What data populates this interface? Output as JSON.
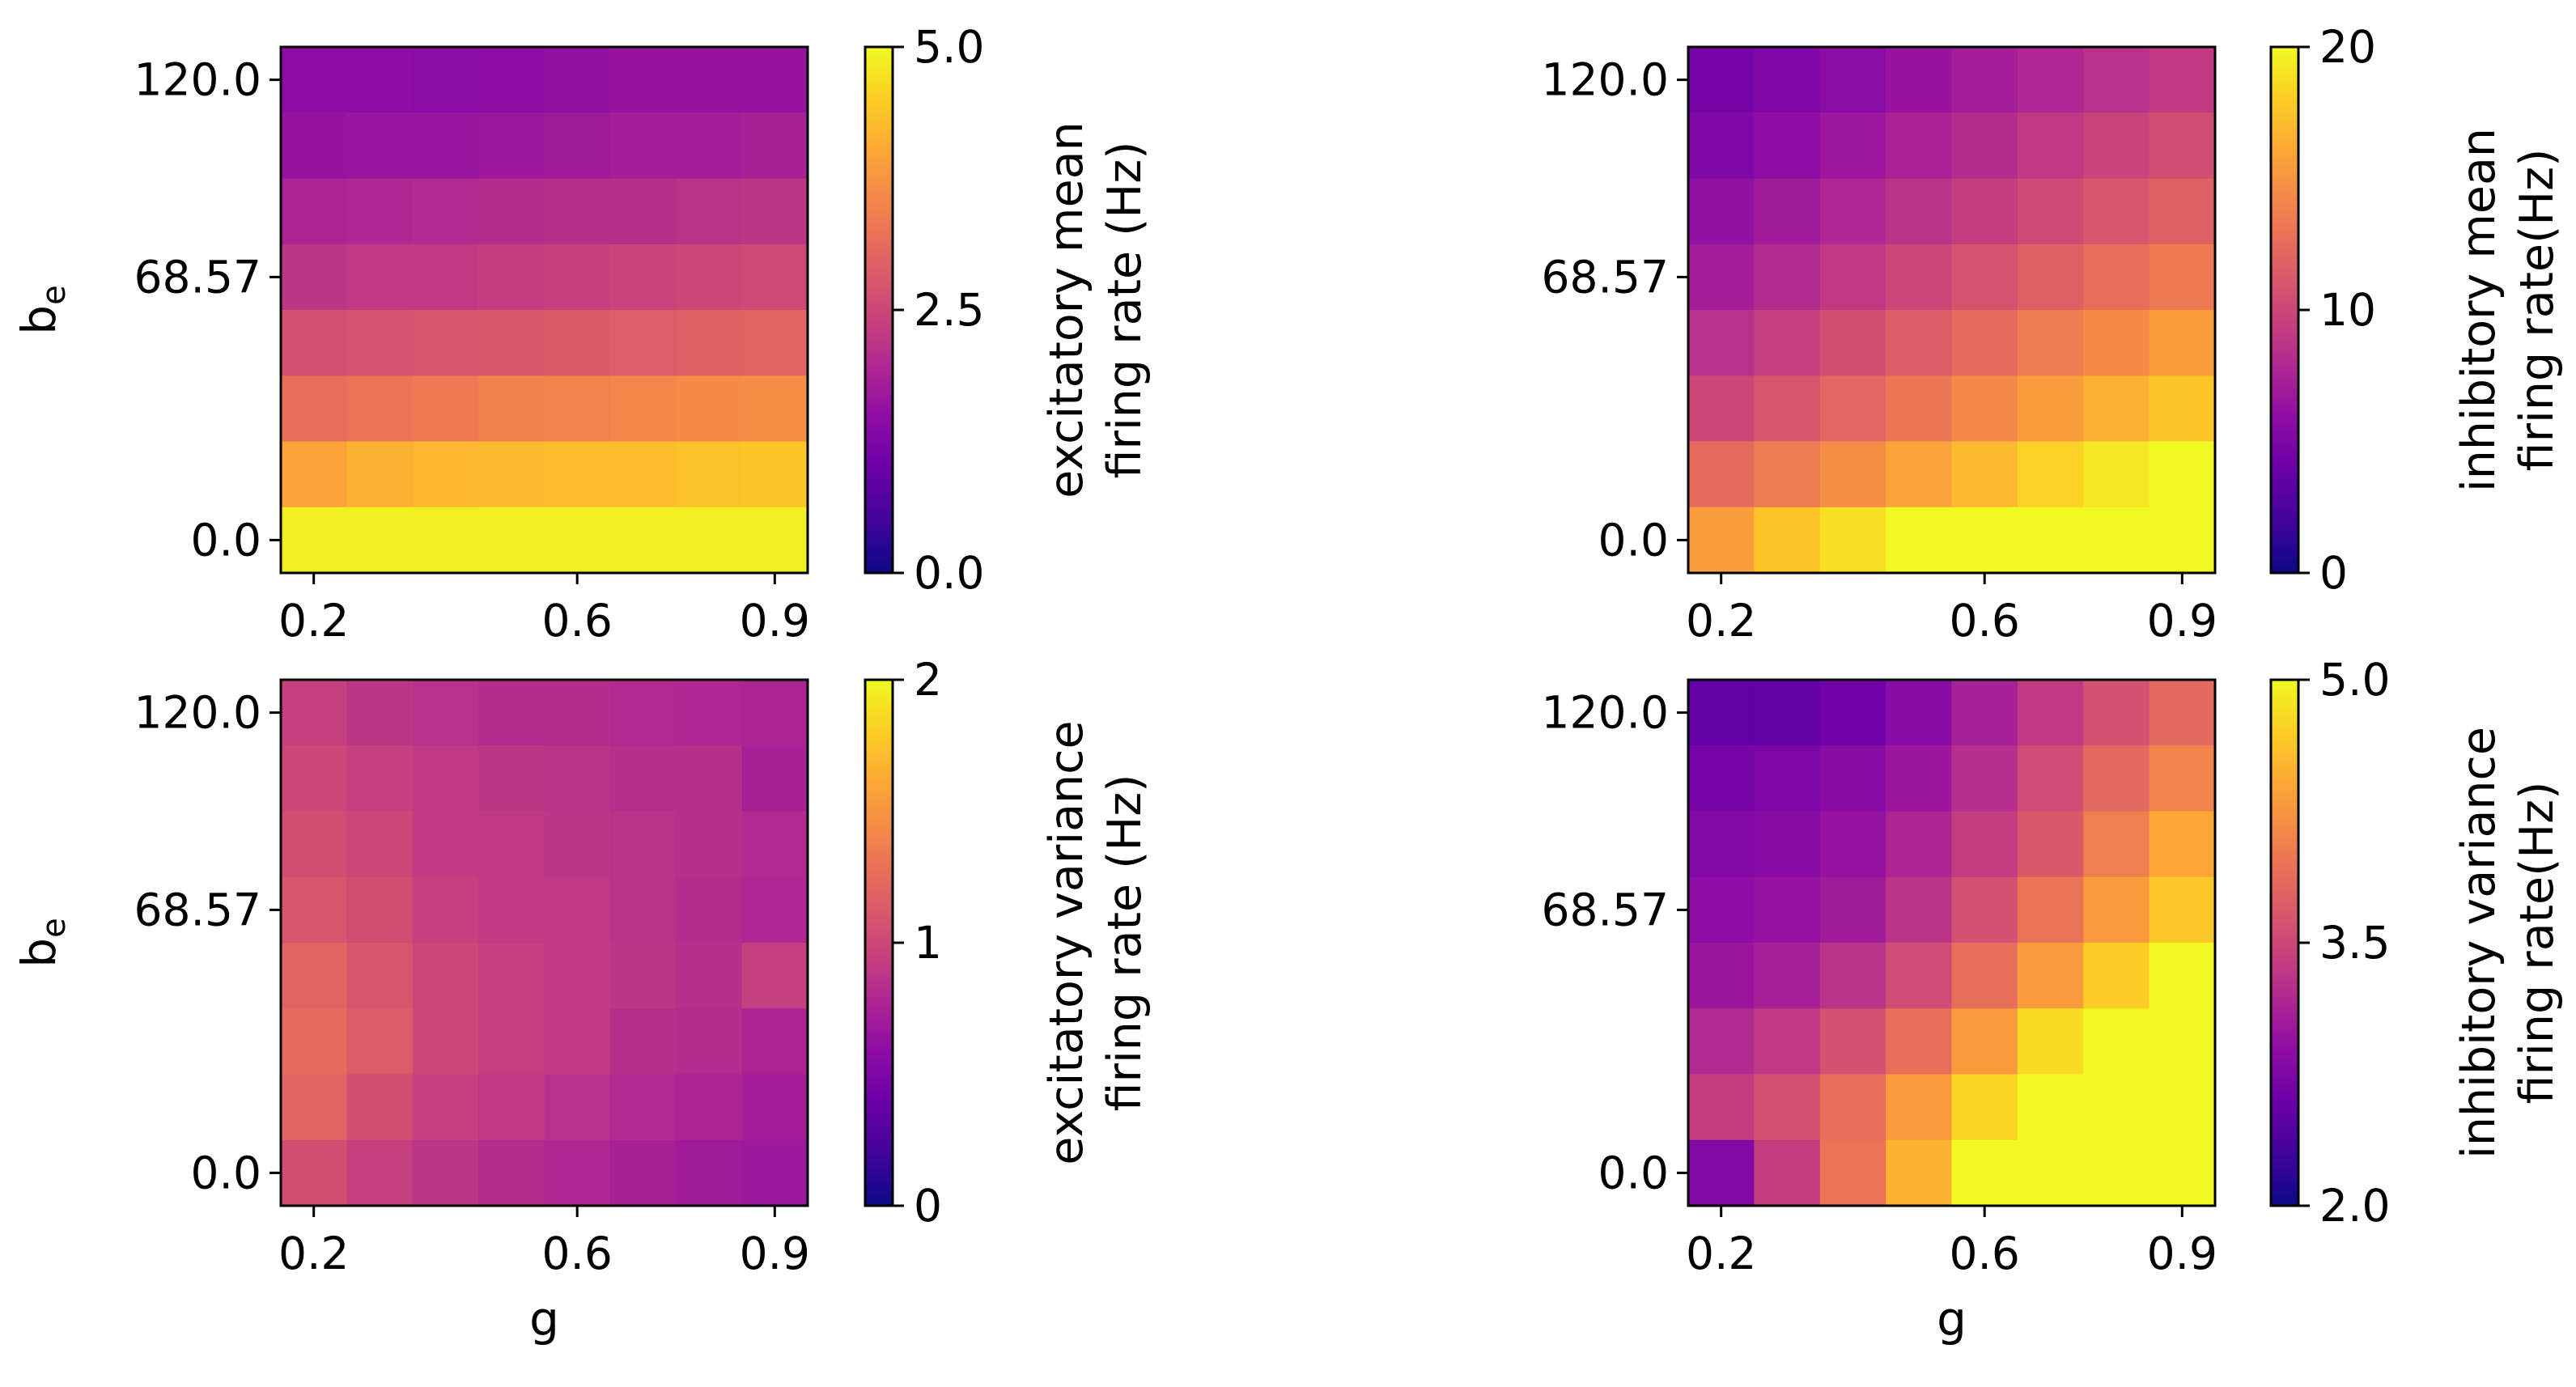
{
  "chart_data": [
    {
      "type": "heatmap",
      "id": "excitatory-mean",
      "title": "",
      "xlabel": "",
      "ylabel": "b_e",
      "ylabel_main": "b",
      "ylabel_sub": "e",
      "xticks": [
        {
          "value": 0.2,
          "col": 0
        },
        {
          "value": 0.6,
          "col": 4
        },
        {
          "value": 0.9,
          "col": 7
        }
      ],
      "yticks": [
        {
          "value": 120.0,
          "label": "120.0",
          "row": 0
        },
        {
          "value": 68.57,
          "label": "68.57",
          "row": 3
        },
        {
          "value": 0.0,
          "label": "0.0",
          "row": 7
        }
      ],
      "colorbar": {
        "label_lines": [
          "excitatory mean",
          "firing rate (Hz)"
        ],
        "range": [
          0,
          5
        ],
        "ticks": [
          "0.0",
          "2.5",
          "5.0"
        ],
        "colormap": "plasma"
      },
      "values": [
        [
          1.5,
          1.5,
          1.45,
          1.5,
          1.55,
          1.6,
          1.6,
          1.6
        ],
        [
          1.6,
          1.65,
          1.65,
          1.7,
          1.75,
          1.8,
          1.8,
          1.85
        ],
        [
          1.9,
          1.95,
          2.0,
          2.05,
          2.1,
          2.1,
          2.15,
          2.2
        ],
        [
          2.2,
          2.25,
          2.3,
          2.35,
          2.4,
          2.45,
          2.5,
          2.55
        ],
        [
          2.65,
          2.7,
          2.75,
          2.8,
          2.85,
          2.9,
          2.95,
          3.0
        ],
        [
          3.15,
          3.25,
          3.35,
          3.45,
          3.5,
          3.55,
          3.6,
          3.65
        ],
        [
          3.95,
          4.15,
          4.2,
          4.25,
          4.3,
          4.3,
          4.35,
          4.4
        ],
        [
          4.9,
          4.9,
          4.9,
          4.9,
          4.9,
          4.9,
          4.9,
          4.9
        ]
      ]
    },
    {
      "type": "heatmap",
      "id": "inhibitory-mean",
      "title": "",
      "xlabel": "",
      "ylabel": "",
      "xticks": [
        {
          "value": 0.2,
          "col": 0
        },
        {
          "value": 0.6,
          "col": 4
        },
        {
          "value": 0.9,
          "col": 7
        }
      ],
      "yticks": [
        {
          "value": 120.0,
          "label": "120.0",
          "row": 0
        },
        {
          "value": 68.57,
          "label": "68.57",
          "row": 3
        },
        {
          "value": 0.0,
          "label": "0.0",
          "row": 7
        }
      ],
      "colorbar": {
        "label_lines": [
          "inhibitory mean",
          "firing rate(Hz)"
        ],
        "range": [
          0,
          20
        ],
        "ticks": [
          "0",
          "10",
          "20"
        ],
        "colormap": "plasma"
      },
      "values": [
        [
          4.6,
          5.2,
          5.8,
          6.5,
          7.2,
          7.8,
          8.5,
          9.2
        ],
        [
          5.2,
          6.0,
          6.7,
          7.5,
          8.2,
          9.0,
          9.7,
          10.4
        ],
        [
          6.2,
          7.0,
          7.8,
          8.6,
          9.4,
          10.2,
          11.0,
          11.8
        ],
        [
          7.2,
          8.1,
          9.0,
          9.9,
          10.8,
          11.7,
          12.6,
          13.4
        ],
        [
          8.5,
          9.5,
          10.5,
          11.5,
          12.5,
          13.5,
          14.4,
          15.4
        ],
        [
          10.0,
          11.0,
          12.1,
          13.2,
          14.3,
          15.4,
          16.5,
          17.6
        ],
        [
          12.5,
          13.5,
          14.6,
          15.8,
          17.0,
          18.2,
          19.2,
          20.0
        ],
        [
          15.5,
          17.5,
          18.8,
          20.0,
          20.0,
          20.0,
          20.0,
          20.0
        ]
      ]
    },
    {
      "type": "heatmap",
      "id": "excitatory-variance",
      "title": "",
      "xlabel": "g",
      "ylabel": "b_e",
      "ylabel_main": "b",
      "ylabel_sub": "e",
      "xticks": [
        {
          "value": 0.2,
          "col": 0
        },
        {
          "value": 0.6,
          "col": 4
        },
        {
          "value": 0.9,
          "col": 7
        }
      ],
      "yticks": [
        {
          "value": 120.0,
          "label": "120.0",
          "row": 0
        },
        {
          "value": 68.57,
          "label": "68.57",
          "row": 3
        },
        {
          "value": 0.0,
          "label": "0.0",
          "row": 7
        }
      ],
      "colorbar": {
        "label_lines": [
          "excitatory variance",
          "firing rate (Hz)"
        ],
        "range": [
          0,
          2
        ],
        "ticks": [
          "0",
          "1",
          "2"
        ],
        "colormap": "plasma"
      },
      "values": [
        [
          0.95,
          0.88,
          0.85,
          0.82,
          0.82,
          0.8,
          0.78,
          0.76
        ],
        [
          1.0,
          0.95,
          0.9,
          0.88,
          0.86,
          0.84,
          0.84,
          0.74
        ],
        [
          1.05,
          1.0,
          0.92,
          0.9,
          0.88,
          0.86,
          0.84,
          0.8
        ],
        [
          1.1,
          1.05,
          0.95,
          0.92,
          0.9,
          0.86,
          0.82,
          0.78
        ],
        [
          1.2,
          1.1,
          1.0,
          0.95,
          0.92,
          0.88,
          0.84,
          0.95
        ],
        [
          1.25,
          1.15,
          1.0,
          0.95,
          0.9,
          0.84,
          0.82,
          0.76
        ],
        [
          1.2,
          1.05,
          0.95,
          0.9,
          0.85,
          0.8,
          0.76,
          0.72
        ],
        [
          1.05,
          0.95,
          0.88,
          0.82,
          0.78,
          0.74,
          0.7,
          0.68
        ]
      ]
    },
    {
      "type": "heatmap",
      "id": "inhibitory-variance",
      "title": "",
      "xlabel": "g",
      "ylabel": "",
      "xticks": [
        {
          "value": 0.2,
          "col": 0
        },
        {
          "value": 0.6,
          "col": 4
        },
        {
          "value": 0.9,
          "col": 7
        }
      ],
      "yticks": [
        {
          "value": 120.0,
          "label": "120.0",
          "row": 0
        },
        {
          "value": 68.57,
          "label": "68.57",
          "row": 3
        },
        {
          "value": 0.0,
          "label": "0.0",
          "row": 7
        }
      ],
      "colorbar": {
        "label_lines": [
          "inhibitory variance",
          "firing rate(Hz)"
        ],
        "range": [
          2.0,
          5.0
        ],
        "ticks": [
          "2.0",
          "3.5",
          "5.0"
        ],
        "colormap": "plasma"
      },
      "values": [
        [
          2.55,
          2.55,
          2.65,
          2.85,
          3.1,
          3.35,
          3.6,
          3.85
        ],
        [
          2.7,
          2.75,
          2.85,
          3.0,
          3.25,
          3.55,
          3.85,
          4.1
        ],
        [
          2.8,
          2.85,
          2.95,
          3.15,
          3.4,
          3.7,
          4.05,
          4.4
        ],
        [
          2.9,
          2.95,
          3.05,
          3.3,
          3.6,
          3.95,
          4.3,
          4.65
        ],
        [
          3.0,
          3.1,
          3.3,
          3.55,
          3.9,
          4.3,
          4.7,
          5.0
        ],
        [
          3.2,
          3.35,
          3.6,
          3.9,
          4.3,
          4.8,
          5.0,
          5.0
        ],
        [
          3.4,
          3.6,
          3.9,
          4.3,
          4.75,
          5.0,
          5.0,
          5.0
        ],
        [
          2.8,
          3.4,
          3.95,
          4.5,
          5.0,
          5.0,
          5.0,
          5.0
        ]
      ]
    }
  ]
}
